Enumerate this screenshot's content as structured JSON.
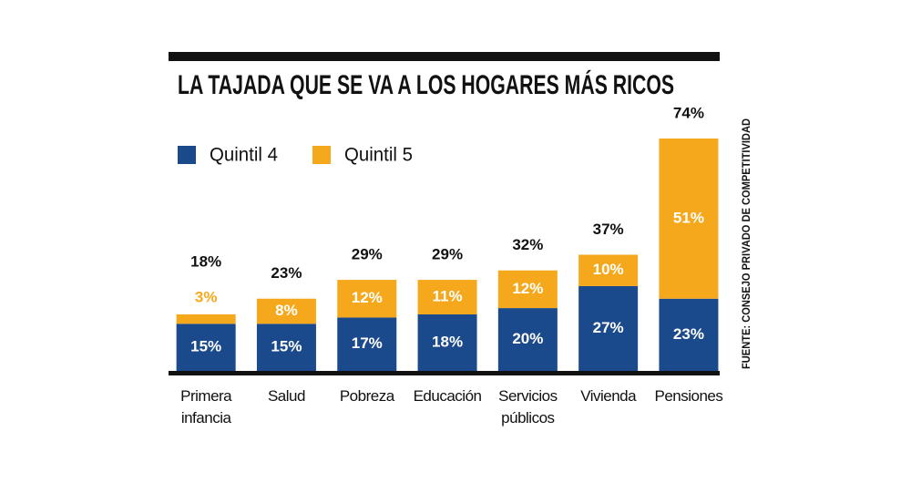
{
  "chart_data": {
    "type": "stacked_bar",
    "title": "LA TAJADA QUE SE VA A LOS HOGARES MÁS RICOS",
    "source": "FUENTE: CONSEJO PRIVADO DE COMPETITIVIDAD",
    "categories": [
      "Primera infancia",
      "Salud",
      "Pobreza",
      "Educación",
      "Servicios públicos",
      "Vivienda",
      "Pensiones"
    ],
    "series": [
      {
        "name": "Quintil 4",
        "color": "#1b4a8c",
        "values": [
          15,
          15,
          17,
          18,
          20,
          27,
          23
        ],
        "value_labels": [
          "15%",
          "15%",
          "17%",
          "18%",
          "20%",
          "27%",
          "23%"
        ]
      },
      {
        "name": "Quintil 5",
        "color": "#f5a81c",
        "values": [
          3,
          8,
          12,
          11,
          12,
          10,
          51
        ],
        "value_labels": [
          "3%",
          "8%",
          "12%",
          "11%",
          "12%",
          "10%",
          "51%"
        ]
      }
    ],
    "totals": [
      18,
      23,
      29,
      29,
      32,
      37,
      74
    ],
    "total_labels": [
      "18%",
      "23%",
      "29%",
      "29%",
      "32%",
      "37%",
      "74%"
    ]
  }
}
